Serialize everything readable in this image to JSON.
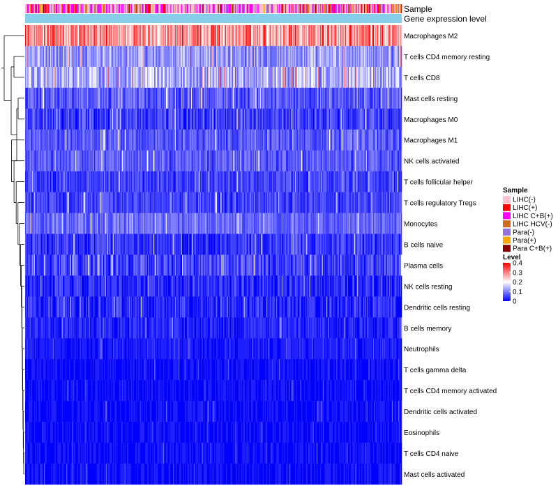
{
  "chart_data": {
    "type": "heatmap",
    "title": "",
    "xlabel": "",
    "ylabel": "",
    "annotation_tracks": [
      "Sample",
      "Gene expression level"
    ],
    "rows": [
      {
        "label": "Macrophages M2",
        "mean": 0.28,
        "spread": 0.09
      },
      {
        "label": "T cells CD4 memory resting",
        "mean": 0.12,
        "spread": 0.06
      },
      {
        "label": "T cells CD8",
        "mean": 0.14,
        "spread": 0.07
      },
      {
        "label": "Mast cells resting",
        "mean": 0.07,
        "spread": 0.05
      },
      {
        "label": "Macrophages M0",
        "mean": 0.05,
        "spread": 0.05
      },
      {
        "label": "Macrophages M1",
        "mean": 0.07,
        "spread": 0.04
      },
      {
        "label": "NK cells activated",
        "mean": 0.07,
        "spread": 0.04
      },
      {
        "label": "T cells follicular helper",
        "mean": 0.05,
        "spread": 0.04
      },
      {
        "label": "T cells regulatory  Tregs",
        "mean": 0.05,
        "spread": 0.04
      },
      {
        "label": "Monocytes",
        "mean": 0.08,
        "spread": 0.04
      },
      {
        "label": "B cells naive",
        "mean": 0.04,
        "spread": 0.04
      },
      {
        "label": "Plasma cells",
        "mean": 0.05,
        "spread": 0.05
      },
      {
        "label": "NK cells resting",
        "mean": 0.03,
        "spread": 0.04
      },
      {
        "label": "Dendritic cells resting",
        "mean": 0.03,
        "spread": 0.04
      },
      {
        "label": "B cells memory",
        "mean": 0.03,
        "spread": 0.03
      },
      {
        "label": "Neutrophils",
        "mean": 0.02,
        "spread": 0.02
      },
      {
        "label": "T cells gamma delta",
        "mean": 0.01,
        "spread": 0.02
      },
      {
        "label": "T cells CD4 memory activated",
        "mean": 0.01,
        "spread": 0.02
      },
      {
        "label": "Dendritic cells activated",
        "mean": 0.01,
        "spread": 0.02
      },
      {
        "label": "Eosinophils",
        "mean": 0.01,
        "spread": 0.015
      },
      {
        "label": "T cells CD4 naive",
        "mean": 0.01,
        "spread": 0.02
      },
      {
        "label": "Mast cells activated",
        "mean": 0.01,
        "spread": 0.02
      }
    ],
    "n_samples": 420,
    "sample_legend": {
      "title": "Sample",
      "entries": [
        {
          "label": "LIHC(-)",
          "color": "#FFC0CB"
        },
        {
          "label": "LIHC(+)",
          "color": "#FF0000"
        },
        {
          "label": "LIHC C+B(+)",
          "color": "#FF00FF"
        },
        {
          "label": "LIHC HCV(-)",
          "color": "#D2691E"
        },
        {
          "label": "Para(-)",
          "color": "#9370DB"
        },
        {
          "label": "Para(+)",
          "color": "#FFA500"
        },
        {
          "label": "Para C+B(+)",
          "color": "#8B0000"
        }
      ]
    },
    "level_legend": {
      "title": "Level",
      "ticks": [
        "0.4",
        "0.3",
        "0.2",
        "0.1",
        "0"
      ],
      "tick_values": [
        0.4,
        0.3,
        0.2,
        0.1,
        0
      ],
      "range": [
        0,
        0.4
      ],
      "colors": [
        "#0000FF",
        "#FFFFFF",
        "#FF0000"
      ]
    },
    "gene_expression_track_color": "#87CEEB"
  }
}
